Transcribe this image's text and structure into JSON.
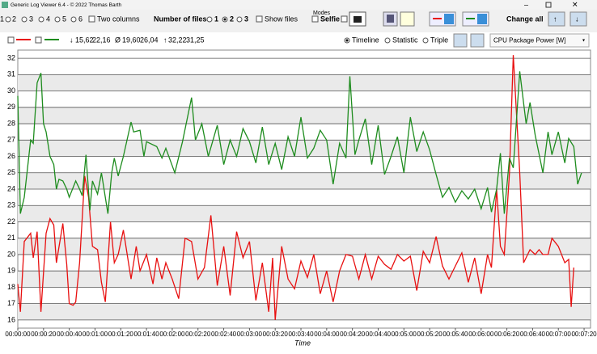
{
  "window": {
    "title": "Generic Log Viewer 6.4 - © 2022 Thomas Barth"
  },
  "toolbar": {
    "layouts": [
      "1",
      "2",
      "3",
      "4",
      "5",
      "6"
    ],
    "two_columns": "Two columns",
    "number_of_files": "Number of files",
    "file_counts": [
      "1",
      "2",
      "3"
    ],
    "show_files": "Show files",
    "modes": "Modes",
    "selfie": "Selfie",
    "change_all": "Change all"
  },
  "stats": {
    "min_symbol": "↓",
    "min": [
      "15,62",
      "22,16"
    ],
    "avg_symbol": "Ø",
    "avg": [
      "19,60",
      "26,04"
    ],
    "max_symbol": "↑",
    "max": [
      "32,22",
      "31,25"
    ]
  },
  "views": [
    "Timeline",
    "Statistic",
    "Triple"
  ],
  "sensor": "CPU Package Power [W]",
  "chart_data": {
    "type": "line",
    "xlabel": "Time",
    "xlim": [
      0,
      445
    ],
    "ylim": [
      15.5,
      32.5
    ],
    "yticks": [
      16,
      17,
      18,
      19,
      20,
      21,
      22,
      23,
      24,
      25,
      26,
      27,
      28,
      29,
      30,
      31,
      32
    ],
    "xticks": [
      {
        "value": 0,
        "label": "00:00:00"
      },
      {
        "value": 20,
        "label": "00:00:20"
      },
      {
        "value": 40,
        "label": "00:00:40"
      },
      {
        "value": 60,
        "label": "00:01:00"
      },
      {
        "value": 80,
        "label": "00:01:20"
      },
      {
        "value": 100,
        "label": "00:01:40"
      },
      {
        "value": 120,
        "label": "00:02:00"
      },
      {
        "value": 140,
        "label": "00:02:20"
      },
      {
        "value": 160,
        "label": "00:02:40"
      },
      {
        "value": 180,
        "label": "00:03:00"
      },
      {
        "value": 200,
        "label": "00:03:20"
      },
      {
        "value": 220,
        "label": "00:03:40"
      },
      {
        "value": 240,
        "label": "00:04:00"
      },
      {
        "value": 260,
        "label": "00:04:20"
      },
      {
        "value": 280,
        "label": "00:04:40"
      },
      {
        "value": 300,
        "label": "00:05:00"
      },
      {
        "value": 320,
        "label": "00:05:20"
      },
      {
        "value": 340,
        "label": "00:05:40"
      },
      {
        "value": 360,
        "label": "00:06:00"
      },
      {
        "value": 380,
        "label": "00:06:20"
      },
      {
        "value": 400,
        "label": "00:06:40"
      },
      {
        "value": 420,
        "label": "00:07:00"
      },
      {
        "value": 440,
        "label": "00:07:20"
      }
    ],
    "grid": true,
    "series": [
      {
        "color": "#e81010",
        "x": [
          0,
          2,
          5,
          10,
          12,
          15,
          18,
          22,
          25,
          28,
          30,
          35,
          38,
          40,
          43,
          45,
          48,
          52,
          55,
          58,
          62,
          65,
          68,
          72,
          75,
          78,
          82,
          88,
          92,
          95,
          100,
          105,
          108,
          112,
          115,
          120,
          125,
          130,
          135,
          140,
          145,
          150,
          155,
          160,
          165,
          170,
          175,
          180,
          185,
          190,
          195,
          198,
          200,
          205,
          210,
          215,
          220,
          225,
          230,
          235,
          240,
          245,
          250,
          255,
          260,
          265,
          270,
          275,
          280,
          285,
          290,
          295,
          300,
          305,
          310,
          315,
          320,
          325,
          330,
          335,
          340,
          345,
          350,
          355,
          360,
          365,
          368,
          372,
          375,
          378,
          382,
          385,
          390,
          393,
          398,
          402,
          405,
          408,
          412,
          415,
          420,
          425,
          428,
          430,
          432
        ],
        "values": [
          18.2,
          16.5,
          20.8,
          21.3,
          19.8,
          21.4,
          16.5,
          21.3,
          22.2,
          21.8,
          19.5,
          21.9,
          19.4,
          17,
          16.9,
          17.1,
          19.5,
          24.8,
          23.5,
          20.5,
          20.3,
          18.3,
          17.1,
          22,
          19.5,
          20,
          21.5,
          18.5,
          20.5,
          19,
          20,
          18.2,
          19.8,
          18.5,
          19.5,
          18.5,
          17.3,
          21,
          20.8,
          18.5,
          19.2,
          22.4,
          18.1,
          20.5,
          17.5,
          21.4,
          19.8,
          20.8,
          17.2,
          19.5,
          16.5,
          19.8,
          16,
          20.5,
          18.5,
          17.9,
          19.6,
          18.6,
          20,
          17.6,
          19,
          17.1,
          19,
          20,
          19.9,
          18.5,
          20,
          18.5,
          19.9,
          19.4,
          19.1,
          20,
          19.6,
          19.9,
          17.8,
          20.2,
          19.5,
          21.1,
          19.3,
          18.5,
          19.3,
          20.1,
          18.3,
          19.8,
          17.6,
          20,
          19.2,
          24,
          20.5,
          20,
          25,
          32.2,
          25,
          19.5,
          20.3,
          20,
          20.3,
          20,
          20,
          21,
          20.5,
          19.5,
          19.7,
          16.8,
          19.2
        ]
      },
      {
        "color": "#1e8c1e",
        "x": [
          0,
          2,
          5,
          10,
          12,
          15,
          18,
          20,
          22,
          25,
          28,
          30,
          32,
          35,
          38,
          40,
          45,
          48,
          50,
          53,
          56,
          58,
          62,
          65,
          70,
          73,
          75,
          78,
          82,
          88,
          90,
          95,
          98,
          100,
          108,
          112,
          115,
          122,
          128,
          135,
          138,
          143,
          148,
          155,
          160,
          165,
          170,
          175,
          180,
          185,
          190,
          195,
          200,
          205,
          210,
          215,
          220,
          225,
          230,
          235,
          240,
          245,
          250,
          255,
          258,
          262,
          265,
          270,
          275,
          280,
          285,
          290,
          295,
          300,
          305,
          310,
          315,
          320,
          325,
          330,
          335,
          340,
          345,
          350,
          355,
          360,
          365,
          368,
          372,
          375,
          378,
          382,
          385,
          390,
          395,
          398,
          402,
          408,
          412,
          415,
          420,
          425,
          428,
          432,
          435,
          438
        ],
        "values": [
          29.7,
          22.5,
          23.5,
          27,
          26.8,
          30.5,
          31.1,
          28,
          27.5,
          26,
          25.5,
          24,
          24.6,
          24.5,
          24,
          23.5,
          24.5,
          24,
          23.6,
          26.1,
          22.7,
          24.5,
          23.7,
          25,
          22.5,
          25,
          25.9,
          24.8,
          26,
          28.1,
          27.5,
          27.6,
          26,
          26.9,
          26.6,
          25.9,
          26.5,
          25,
          26.9,
          29.6,
          27,
          28,
          26,
          27.9,
          25.5,
          27,
          26,
          27.7,
          26.9,
          25.6,
          27.8,
          25.5,
          26.8,
          25.2,
          27.2,
          26,
          28.4,
          25.9,
          26.5,
          27.6,
          27,
          24.3,
          26.8,
          25.9,
          30.9,
          26.1,
          27,
          28.3,
          25.5,
          27.9,
          24.9,
          26,
          27.2,
          25,
          28.4,
          26.3,
          27.5,
          26.4,
          24.9,
          23.5,
          24.1,
          23.2,
          23.9,
          23.4,
          24,
          22.8,
          24.1,
          22.6,
          24,
          26.2,
          22.5,
          25.9,
          25.3,
          31.2,
          28,
          29.3,
          27.3,
          25,
          27.5,
          26.1,
          27.5,
          25.6,
          27.1,
          26.6,
          24.3,
          25
        ]
      }
    ]
  }
}
